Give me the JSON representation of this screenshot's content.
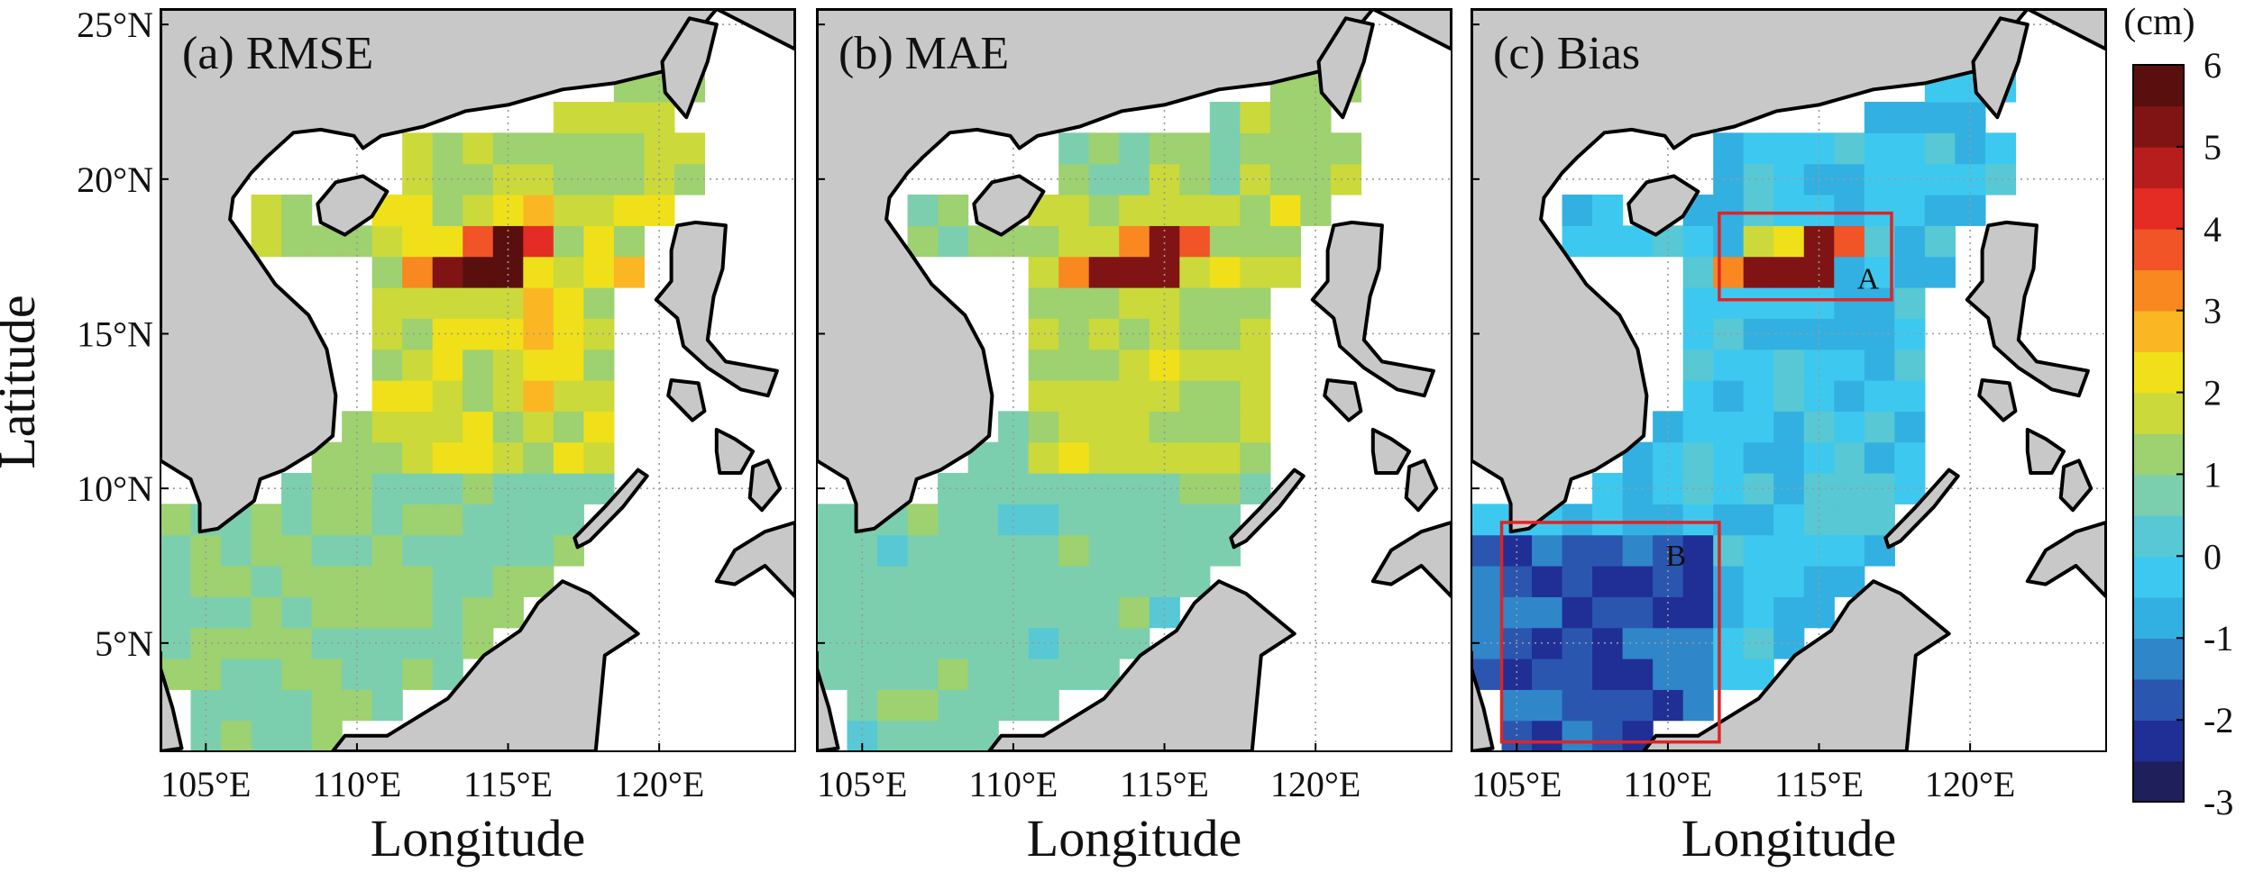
{
  "chart_data": {
    "type": "heatmap",
    "ylabel": "Latitude",
    "xlabel": "Longitude",
    "lon_range": [
      103.5,
      124.5
    ],
    "lat_range": [
      1.5,
      25.5
    ],
    "xticks": [
      {
        "value": 105,
        "label": "105°E"
      },
      {
        "value": 110,
        "label": "110°E"
      },
      {
        "value": 115,
        "label": "115°E"
      },
      {
        "value": 120,
        "label": "120°E"
      }
    ],
    "yticks": [
      {
        "value": 25,
        "label": "25°N"
      },
      {
        "value": 20,
        "label": "20°N"
      },
      {
        "value": 15,
        "label": "15°N"
      },
      {
        "value": 10,
        "label": "10°N"
      },
      {
        "value": 5,
        "label": "5°N"
      }
    ],
    "grid": true,
    "panels": [
      {
        "title": "(a) RMSE",
        "metric": "rmse",
        "hotspot": [
          {
            "lon": 112,
            "lat": 17,
            "value": 3.0
          },
          {
            "lon": 113,
            "lat": 17,
            "value": 5.2
          },
          {
            "lon": 114,
            "lat": 17,
            "value": 6.0
          },
          {
            "lon": 115,
            "lat": 17,
            "value": 5.5
          },
          {
            "lon": 114,
            "lat": 18,
            "value": 3.8
          },
          {
            "lon": 115,
            "lat": 18,
            "value": 5.8
          },
          {
            "lon": 116,
            "lat": 18,
            "value": 4.2
          }
        ]
      },
      {
        "title": "(b) MAE",
        "metric": "mae",
        "hotspot": [
          {
            "lon": 112,
            "lat": 17,
            "value": 3.0
          },
          {
            "lon": 113,
            "lat": 17,
            "value": 5.0
          },
          {
            "lon": 114,
            "lat": 17,
            "value": 5.3
          },
          {
            "lon": 115,
            "lat": 17,
            "value": 5.2
          },
          {
            "lon": 114,
            "lat": 18,
            "value": 3.0
          },
          {
            "lon": 115,
            "lat": 18,
            "value": 5.2
          },
          {
            "lon": 116,
            "lat": 18,
            "value": 3.8
          }
        ]
      },
      {
        "title": "(c) Bias",
        "metric": "bias",
        "hotspot": [
          {
            "lon": 112,
            "lat": 17,
            "value": 3.0
          },
          {
            "lon": 113,
            "lat": 17,
            "value": 5.0
          },
          {
            "lon": 114,
            "lat": 17,
            "value": 5.0
          },
          {
            "lon": 115,
            "lat": 17,
            "value": 5.0
          },
          {
            "lon": 113,
            "lat": 18,
            "value": 1.5
          },
          {
            "lon": 114,
            "lat": 18,
            "value": 2.0
          },
          {
            "lon": 115,
            "lat": 18,
            "value": 5.0
          },
          {
            "lon": 116,
            "lat": 18,
            "value": 3.5
          }
        ],
        "boxes": [
          {
            "label": "A",
            "lon_min": 111.7,
            "lon_max": 117.4,
            "lat_min": 16.1,
            "lat_max": 18.9
          },
          {
            "label": "B",
            "lon_min": 104.5,
            "lon_max": 111.7,
            "lat_min": 1.8,
            "lat_max": 8.9
          }
        ]
      }
    ],
    "colorbar": {
      "unit": "(cm)",
      "min": -3,
      "max": 6,
      "ticks": [
        6,
        5,
        4,
        3,
        2,
        1,
        0,
        -1,
        -2,
        -3
      ],
      "colors": [
        "#1f1f5c",
        "#1f2f96",
        "#2a56b0",
        "#2f86c9",
        "#33b0e2",
        "#3dc9ef",
        "#57c8d4",
        "#7ccfae",
        "#9ed16f",
        "#cbd93b",
        "#efe01a",
        "#fbb624",
        "#f8881f",
        "#f05427",
        "#e42b24",
        "#b81d1d",
        "#801414",
        "#5a0f0f"
      ]
    }
  }
}
